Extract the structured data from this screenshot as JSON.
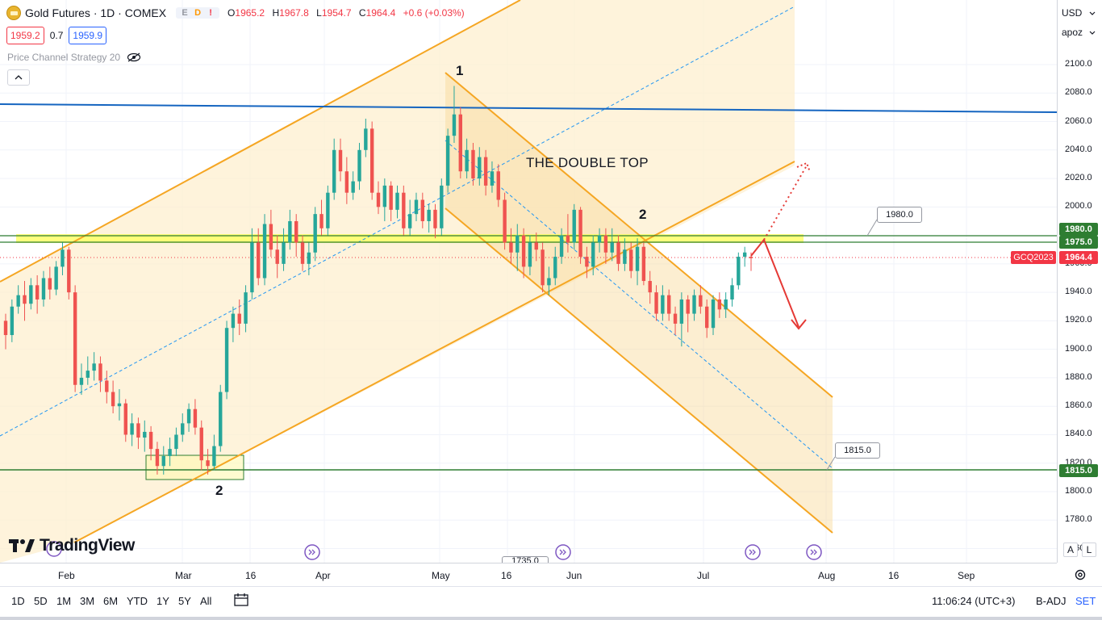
{
  "header": {
    "symbol_title": "Gold Futures · 1D · COMEX",
    "badges": [
      "E",
      "D",
      "!"
    ],
    "ohlc": {
      "o_label": "O",
      "o_value": "1965.2",
      "h_label": "H",
      "h_value": "1967.8",
      "l_label": "L",
      "l_value": "1954.7",
      "c_label": "C",
      "c_value": "1964.4",
      "change": "+0.6 (+0.03%)"
    },
    "sell_price": "1959.2",
    "spread": "0.7",
    "buy_price": "1959.9",
    "indicator_name": "Price Channel Strategy 20"
  },
  "price_axis": {
    "currency": "USD",
    "mode": "apoz",
    "ticks": [
      "2100.0",
      "2080.0",
      "2060.0",
      "2040.0",
      "2020.0",
      "2000.0",
      "1980.0",
      "1960.0",
      "1940.0",
      "1920.0",
      "1900.0",
      "1880.0",
      "1860.0",
      "1840.0",
      "1820.0",
      "1800.0",
      "1780.0",
      "1760.0"
    ],
    "label_1980": "1980.0",
    "label_1975": "1975.0",
    "label_current": "1964.4",
    "label_1815": "1815.0",
    "symbol_tag": "GCQ2023",
    "auto_btn": "A",
    "log_btn": "L"
  },
  "time_axis": {
    "labels": [
      "Feb",
      "Mar",
      "16",
      "Apr",
      "May",
      "16",
      "Jun",
      "Jul",
      "Aug",
      "16",
      "Sep"
    ]
  },
  "annotations": {
    "double_top": "THE DOUBLE TOP",
    "peak_1": "1",
    "peak_2": "2",
    "bottom_2": "2",
    "callout_1980": "1980.0",
    "callout_1815": "1815.0",
    "callout_hidden": "1735.0"
  },
  "bottom_bar": {
    "ranges": [
      "1D",
      "5D",
      "1M",
      "3M",
      "6M",
      "YTD",
      "1Y",
      "5Y",
      "All"
    ],
    "time": "11:06:24 (UTC+3)",
    "adjust": "B-ADJ",
    "settings": "SET"
  },
  "branding": {
    "logo_text": "TradingView"
  },
  "colors": {
    "bull": "#26a69a",
    "bear": "#ef5350",
    "channel": "#f5a623",
    "channel_fill": "#fdefcf",
    "blue_line": "#1565c0",
    "green_line": "#2e7d32",
    "highlight": "#ffff66"
  },
  "chart_data": {
    "type": "candlestick",
    "series": [
      {
        "name": "GCQ2023",
        "points": [
          {
            "o": 1920,
            "c": 1910,
            "h": 1925,
            "l": 1900
          },
          {
            "o": 1910,
            "c": 1930,
            "h": 1935,
            "l": 1905
          },
          {
            "o": 1930,
            "c": 1938,
            "h": 1945,
            "l": 1925
          },
          {
            "o": 1938,
            "c": 1932,
            "h": 1948,
            "l": 1920
          },
          {
            "o": 1932,
            "c": 1945,
            "h": 1950,
            "l": 1928
          },
          {
            "o": 1945,
            "c": 1935,
            "h": 1952,
            "l": 1925
          },
          {
            "o": 1935,
            "c": 1950,
            "h": 1955,
            "l": 1930
          },
          {
            "o": 1950,
            "c": 1942,
            "h": 1958,
            "l": 1935
          },
          {
            "o": 1942,
            "c": 1958,
            "h": 1962,
            "l": 1938
          },
          {
            "o": 1958,
            "c": 1970,
            "h": 1975,
            "l": 1952
          },
          {
            "o": 1970,
            "c": 1940,
            "h": 1972,
            "l": 1935
          },
          {
            "o": 1940,
            "c": 1875,
            "h": 1945,
            "l": 1870
          },
          {
            "o": 1875,
            "c": 1880,
            "h": 1890,
            "l": 1868
          },
          {
            "o": 1880,
            "c": 1885,
            "h": 1895,
            "l": 1875
          },
          {
            "o": 1885,
            "c": 1890,
            "h": 1898,
            "l": 1878
          },
          {
            "o": 1890,
            "c": 1878,
            "h": 1895,
            "l": 1870
          },
          {
            "o": 1878,
            "c": 1870,
            "h": 1885,
            "l": 1862
          },
          {
            "o": 1870,
            "c": 1860,
            "h": 1878,
            "l": 1855
          },
          {
            "o": 1860,
            "c": 1862,
            "h": 1872,
            "l": 1850
          },
          {
            "o": 1862,
            "c": 1840,
            "h": 1865,
            "l": 1835
          },
          {
            "o": 1840,
            "c": 1848,
            "h": 1855,
            "l": 1832
          },
          {
            "o": 1848,
            "c": 1838,
            "h": 1852,
            "l": 1830
          },
          {
            "o": 1838,
            "c": 1842,
            "h": 1850,
            "l": 1828
          },
          {
            "o": 1842,
            "c": 1830,
            "h": 1846,
            "l": 1822
          },
          {
            "o": 1830,
            "c": 1818,
            "h": 1835,
            "l": 1812
          },
          {
            "o": 1818,
            "c": 1825,
            "h": 1832,
            "l": 1812
          },
          {
            "o": 1825,
            "c": 1830,
            "h": 1838,
            "l": 1818
          },
          {
            "o": 1830,
            "c": 1840,
            "h": 1845,
            "l": 1825
          },
          {
            "o": 1840,
            "c": 1848,
            "h": 1855,
            "l": 1835
          },
          {
            "o": 1848,
            "c": 1858,
            "h": 1862,
            "l": 1842
          },
          {
            "o": 1858,
            "c": 1845,
            "h": 1865,
            "l": 1840
          },
          {
            "o": 1845,
            "c": 1822,
            "h": 1850,
            "l": 1815
          },
          {
            "o": 1822,
            "c": 1818,
            "h": 1830,
            "l": 1812
          },
          {
            "o": 1818,
            "c": 1832,
            "h": 1840,
            "l": 1815
          },
          {
            "o": 1832,
            "c": 1870,
            "h": 1875,
            "l": 1828
          },
          {
            "o": 1870,
            "c": 1915,
            "h": 1920,
            "l": 1865
          },
          {
            "o": 1915,
            "c": 1925,
            "h": 1930,
            "l": 1905
          },
          {
            "o": 1925,
            "c": 1918,
            "h": 1935,
            "l": 1910
          },
          {
            "o": 1918,
            "c": 1940,
            "h": 1945,
            "l": 1912
          },
          {
            "o": 1940,
            "c": 1975,
            "h": 1985,
            "l": 1935
          },
          {
            "o": 1975,
            "c": 1950,
            "h": 1985,
            "l": 1945
          },
          {
            "o": 1950,
            "c": 1988,
            "h": 1995,
            "l": 1945
          },
          {
            "o": 1988,
            "c": 1970,
            "h": 1998,
            "l": 1965
          },
          {
            "o": 1970,
            "c": 1960,
            "h": 1980,
            "l": 1950
          },
          {
            "o": 1960,
            "c": 1975,
            "h": 1985,
            "l": 1955
          },
          {
            "o": 1975,
            "c": 1990,
            "h": 1998,
            "l": 1970
          },
          {
            "o": 1990,
            "c": 1975,
            "h": 1995,
            "l": 1965
          },
          {
            "o": 1975,
            "c": 1960,
            "h": 1980,
            "l": 1955
          },
          {
            "o": 1960,
            "c": 1968,
            "h": 1975,
            "l": 1952
          },
          {
            "o": 1968,
            "c": 1995,
            "h": 2000,
            "l": 1962
          },
          {
            "o": 1995,
            "c": 1985,
            "h": 2005,
            "l": 1980
          },
          {
            "o": 1985,
            "c": 2010,
            "h": 2015,
            "l": 1980
          },
          {
            "o": 2010,
            "c": 2040,
            "h": 2048,
            "l": 2005
          },
          {
            "o": 2040,
            "c": 2025,
            "h": 2048,
            "l": 2018
          },
          {
            "o": 2025,
            "c": 2010,
            "h": 2035,
            "l": 2002
          },
          {
            "o": 2010,
            "c": 2018,
            "h": 2025,
            "l": 2005
          },
          {
            "o": 2018,
            "c": 2040,
            "h": 2045,
            "l": 2012
          },
          {
            "o": 2040,
            "c": 2055,
            "h": 2062,
            "l": 2035
          },
          {
            "o": 2055,
            "c": 2010,
            "h": 2060,
            "l": 2005
          },
          {
            "o": 2010,
            "c": 2000,
            "h": 2018,
            "l": 1995
          },
          {
            "o": 2000,
            "c": 2015,
            "h": 2020,
            "l": 1990
          },
          {
            "o": 2015,
            "c": 1998,
            "h": 2018,
            "l": 1990
          },
          {
            "o": 1998,
            "c": 2010,
            "h": 2015,
            "l": 1992
          },
          {
            "o": 2010,
            "c": 1985,
            "h": 2015,
            "l": 1980
          },
          {
            "o": 1985,
            "c": 1995,
            "h": 2005,
            "l": 1980
          },
          {
            "o": 1995,
            "c": 2005,
            "h": 2010,
            "l": 1990
          },
          {
            "o": 2005,
            "c": 1990,
            "h": 2010,
            "l": 1985
          },
          {
            "o": 1990,
            "c": 1998,
            "h": 2002,
            "l": 1982
          },
          {
            "o": 1998,
            "c": 1985,
            "h": 2002,
            "l": 1978
          },
          {
            "o": 1985,
            "c": 2015,
            "h": 2020,
            "l": 1980
          },
          {
            "o": 2015,
            "c": 2050,
            "h": 2055,
            "l": 2010
          },
          {
            "o": 2050,
            "c": 2065,
            "h": 2085,
            "l": 2045
          },
          {
            "o": 2065,
            "c": 2025,
            "h": 2070,
            "l": 2020
          },
          {
            "o": 2025,
            "c": 2040,
            "h": 2048,
            "l": 2020
          },
          {
            "o": 2040,
            "c": 2020,
            "h": 2045,
            "l": 2015
          },
          {
            "o": 2020,
            "c": 2035,
            "h": 2042,
            "l": 2015
          },
          {
            "o": 2035,
            "c": 2015,
            "h": 2040,
            "l": 2008
          },
          {
            "o": 2015,
            "c": 2025,
            "h": 2032,
            "l": 2010
          },
          {
            "o": 2025,
            "c": 2005,
            "h": 2030,
            "l": 2000
          },
          {
            "o": 2005,
            "c": 1975,
            "h": 2010,
            "l": 1970
          },
          {
            "o": 1975,
            "c": 1968,
            "h": 1985,
            "l": 1960
          },
          {
            "o": 1968,
            "c": 1980,
            "h": 1988,
            "l": 1955
          },
          {
            "o": 1980,
            "c": 1958,
            "h": 1985,
            "l": 1950
          },
          {
            "o": 1958,
            "c": 1975,
            "h": 1980,
            "l": 1952
          },
          {
            "o": 1975,
            "c": 1970,
            "h": 1982,
            "l": 1962
          },
          {
            "o": 1970,
            "c": 1945,
            "h": 1975,
            "l": 1940
          },
          {
            "o": 1945,
            "c": 1950,
            "h": 1958,
            "l": 1938
          },
          {
            "o": 1950,
            "c": 1965,
            "h": 1972,
            "l": 1945
          },
          {
            "o": 1965,
            "c": 1980,
            "h": 1985,
            "l": 1960
          },
          {
            "o": 1980,
            "c": 1975,
            "h": 1995,
            "l": 1968
          },
          {
            "o": 1975,
            "c": 1998,
            "h": 2002,
            "l": 1970
          },
          {
            "o": 1998,
            "c": 1965,
            "h": 2000,
            "l": 1960
          },
          {
            "o": 1965,
            "c": 1958,
            "h": 1972,
            "l": 1950
          },
          {
            "o": 1958,
            "c": 1975,
            "h": 1980,
            "l": 1952
          },
          {
            "o": 1975,
            "c": 1980,
            "h": 1985,
            "l": 1968
          },
          {
            "o": 1980,
            "c": 1968,
            "h": 1985,
            "l": 1960
          },
          {
            "o": 1968,
            "c": 1975,
            "h": 1985,
            "l": 1962
          },
          {
            "o": 1975,
            "c": 1960,
            "h": 1980,
            "l": 1955
          },
          {
            "o": 1960,
            "c": 1970,
            "h": 1978,
            "l": 1955
          },
          {
            "o": 1970,
            "c": 1955,
            "h": 1975,
            "l": 1950
          },
          {
            "o": 1955,
            "c": 1972,
            "h": 1978,
            "l": 1945
          },
          {
            "o": 1972,
            "c": 1948,
            "h": 1975,
            "l": 1945
          },
          {
            "o": 1948,
            "c": 1940,
            "h": 1955,
            "l": 1932
          },
          {
            "o": 1940,
            "c": 1925,
            "h": 1945,
            "l": 1920
          },
          {
            "o": 1925,
            "c": 1938,
            "h": 1945,
            "l": 1920
          },
          {
            "o": 1938,
            "c": 1925,
            "h": 1942,
            "l": 1920
          },
          {
            "o": 1925,
            "c": 1918,
            "h": 1930,
            "l": 1910
          },
          {
            "o": 1918,
            "c": 1935,
            "h": 1940,
            "l": 1902
          },
          {
            "o": 1935,
            "c": 1925,
            "h": 1938,
            "l": 1912
          },
          {
            "o": 1925,
            "c": 1938,
            "h": 1942,
            "l": 1920
          },
          {
            "o": 1938,
            "c": 1930,
            "h": 1945,
            "l": 1925
          },
          {
            "o": 1930,
            "c": 1915,
            "h": 1935,
            "l": 1908
          },
          {
            "o": 1915,
            "c": 1935,
            "h": 1938,
            "l": 1910
          },
          {
            "o": 1935,
            "c": 1928,
            "h": 1940,
            "l": 1922
          },
          {
            "o": 1928,
            "c": 1935,
            "h": 1940,
            "l": 1922
          },
          {
            "o": 1935,
            "c": 1945,
            "h": 1950,
            "l": 1930
          },
          {
            "o": 1945,
            "c": 1965,
            "h": 1968,
            "l": 1942
          },
          {
            "o": 1965,
            "c": 1968,
            "h": 1972,
            "l": 1958
          },
          {
            "o": 1965,
            "c": 1964,
            "h": 1968,
            "l": 1955
          }
        ]
      }
    ],
    "levels": [
      1980.0,
      1975.0,
      1815.0,
      2070.0
    ],
    "ylim": [
      1760,
      2110
    ]
  }
}
